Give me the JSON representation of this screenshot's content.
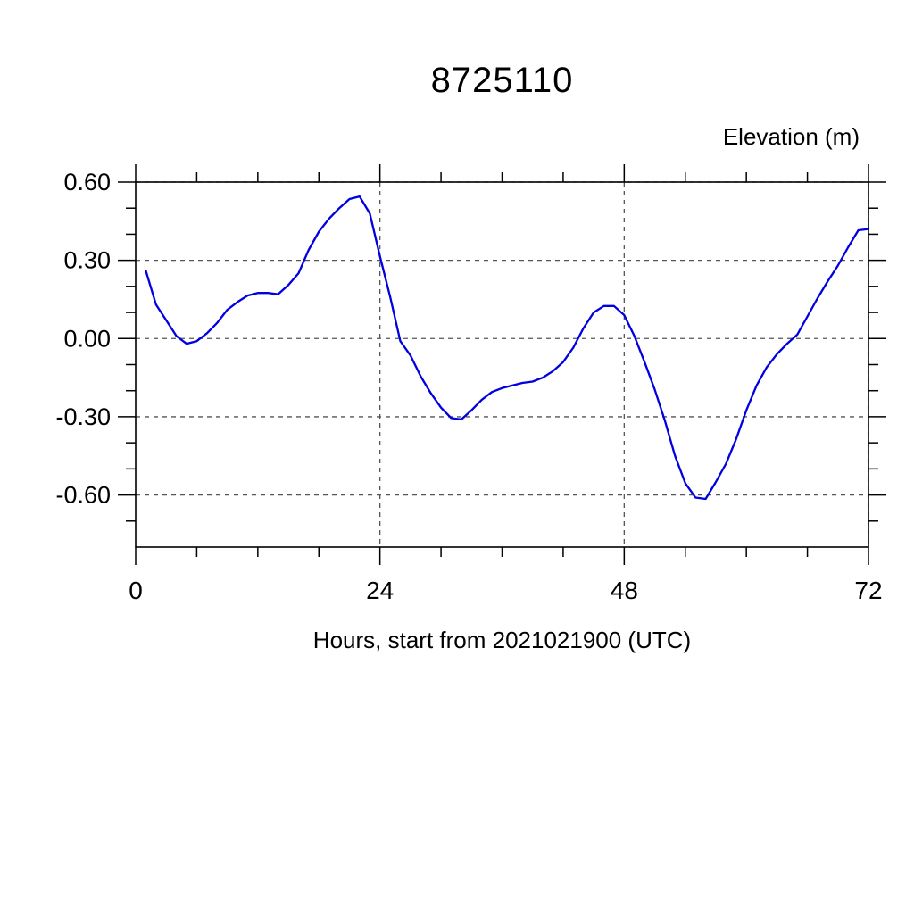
{
  "header": {
    "title": "8725110"
  },
  "chart_data": {
    "type": "line",
    "title": "8725110",
    "xlabel": "Hours, start from 2021021900 (UTC)",
    "ylabel": "Elevation (m)",
    "xlim": [
      0,
      72
    ],
    "ylim": [
      -0.8,
      0.6
    ],
    "x_major_ticks": [
      0,
      24,
      48,
      72
    ],
    "x_tick_labels": [
      "0",
      "24",
      "48",
      "72"
    ],
    "x_minor_ticks": [
      6,
      12,
      18,
      30,
      36,
      42,
      54,
      60,
      66
    ],
    "y_major_ticks": [
      0.6,
      0.3,
      0.0,
      -0.3,
      -0.6
    ],
    "y_tick_labels": [
      "0.60",
      "0.30",
      "0.00",
      "-0.30",
      "-0.60"
    ],
    "y_minor_ticks": [
      0.5,
      0.4,
      0.2,
      0.1,
      -0.1,
      -0.2,
      -0.4,
      -0.5,
      -0.7
    ],
    "grid_x_values": [
      24,
      48,
      72
    ],
    "grid_y_values": [
      0.6,
      0.3,
      0.0,
      -0.3,
      -0.6
    ],
    "grid_style": "dashed",
    "grid_color": "#555555",
    "frame_color": "#000000",
    "line_color": "#0000e0",
    "legend": "none",
    "series": [
      {
        "name": "elevation",
        "x": [
          1,
          2,
          3,
          4,
          5,
          6,
          7,
          8,
          9,
          10,
          11,
          12,
          13,
          14,
          15,
          16,
          17,
          18,
          19,
          20,
          21,
          22,
          23,
          24,
          25,
          26,
          27,
          28,
          29,
          30,
          31,
          32,
          33,
          34,
          35,
          36,
          37,
          38,
          39,
          40,
          41,
          42,
          43,
          44,
          45,
          46,
          47,
          48,
          49,
          50,
          51,
          52,
          53,
          54,
          55,
          56,
          57,
          58,
          59,
          60,
          61,
          62,
          63,
          64,
          65,
          66,
          67,
          68,
          69,
          70,
          71,
          72
        ],
        "y": [
          0.26,
          0.13,
          0.07,
          0.01,
          -0.02,
          -0.01,
          0.02,
          0.06,
          0.11,
          0.14,
          0.165,
          0.175,
          0.175,
          0.17,
          0.205,
          0.25,
          0.34,
          0.41,
          0.46,
          0.5,
          0.535,
          0.545,
          0.48,
          0.315,
          0.16,
          -0.01,
          -0.065,
          -0.145,
          -0.21,
          -0.265,
          -0.305,
          -0.31,
          -0.275,
          -0.235,
          -0.205,
          -0.19,
          -0.18,
          -0.17,
          -0.165,
          -0.15,
          -0.125,
          -0.09,
          -0.035,
          0.04,
          0.1,
          0.125,
          0.125,
          0.09,
          0.01,
          -0.09,
          -0.195,
          -0.315,
          -0.45,
          -0.555,
          -0.61,
          -0.615,
          -0.55,
          -0.48,
          -0.385,
          -0.275,
          -0.18,
          -0.11,
          -0.06,
          -0.02,
          0.015,
          0.085,
          0.155,
          0.22,
          0.28,
          0.35,
          0.415,
          0.42
        ]
      }
    ]
  }
}
